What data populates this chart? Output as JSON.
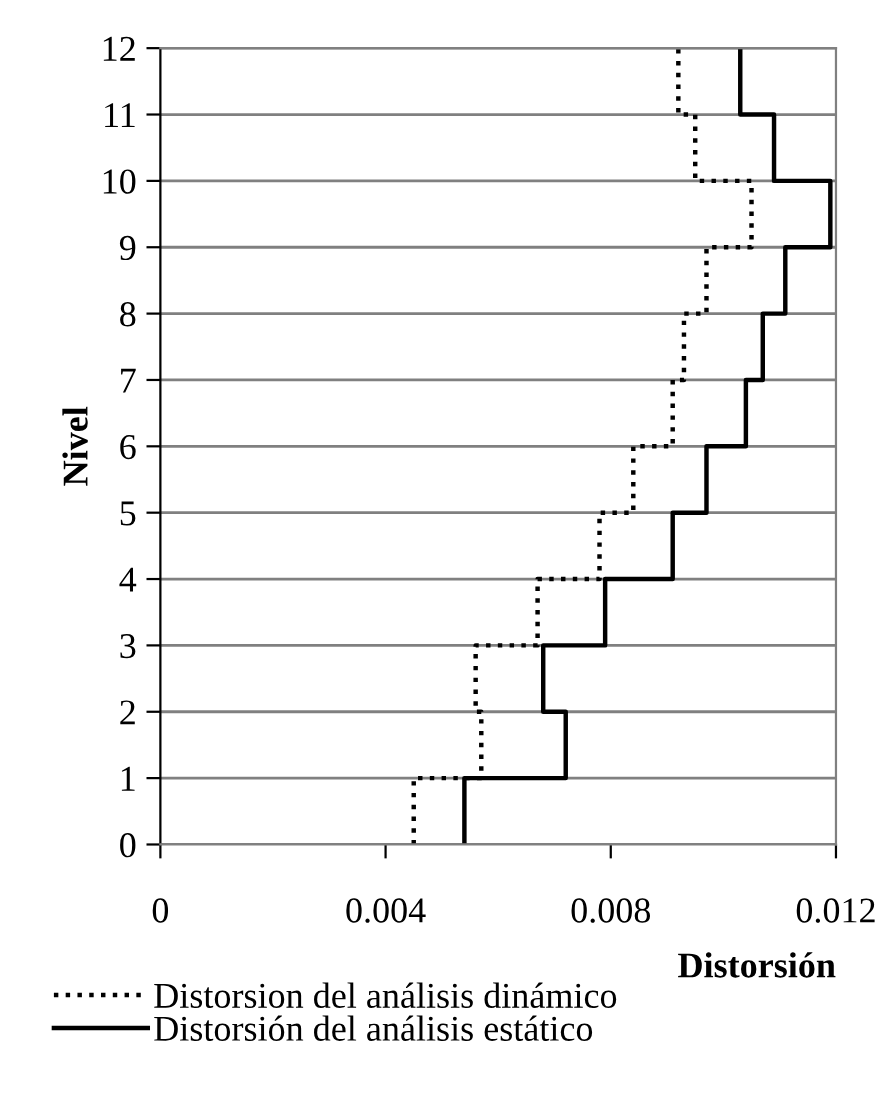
{
  "chart_data": {
    "type": "line",
    "xlabel": "Distorsión",
    "ylabel": "Nivel",
    "xlim": [
      0,
      0.012
    ],
    "xticks": [
      0,
      0.004,
      0.008,
      0.012
    ],
    "ylim": [
      0,
      12
    ],
    "yticks": [
      0,
      1,
      2,
      3,
      4,
      5,
      6,
      7,
      8,
      9,
      10,
      11,
      12
    ],
    "grid": "y",
    "legend": "bottom",
    "marker": "none",
    "series": [
      {
        "name": "Distorsion del análisis dinámico",
        "color": "#000000",
        "line_style": "dotted",
        "x": [
          0.0045,
          0.0045,
          0.0057,
          0.0057,
          0.0056,
          0.0056,
          0.0067,
          0.0067,
          0.0078,
          0.0078,
          0.0084,
          0.0084,
          0.0091,
          0.0091,
          0.0093,
          0.0093,
          0.0097,
          0.0097,
          0.0105,
          0.0105,
          0.0095,
          0.0095,
          0.0092,
          0.0092
        ],
        "values": [
          0,
          1,
          1,
          2,
          2,
          3,
          3,
          4,
          4,
          5,
          5,
          6,
          6,
          7,
          7,
          8,
          8,
          9,
          9,
          10,
          10,
          11,
          11,
          12
        ]
      },
      {
        "name": "Distorsión del análisis estático",
        "color": "#000000",
        "line_style": "solid",
        "x": [
          0.0054,
          0.0054,
          0.0072,
          0.0072,
          0.0068,
          0.0068,
          0.0079,
          0.0079,
          0.0091,
          0.0091,
          0.0097,
          0.0097,
          0.0104,
          0.0104,
          0.0107,
          0.0107,
          0.0111,
          0.0111,
          0.0119,
          0.0119,
          0.0109,
          0.0109,
          0.0103,
          0.0103
        ],
        "values": [
          0,
          1,
          1,
          2,
          2,
          3,
          3,
          4,
          4,
          5,
          5,
          6,
          6,
          7,
          7,
          8,
          8,
          9,
          9,
          10,
          10,
          11,
          11,
          12
        ]
      }
    ]
  }
}
